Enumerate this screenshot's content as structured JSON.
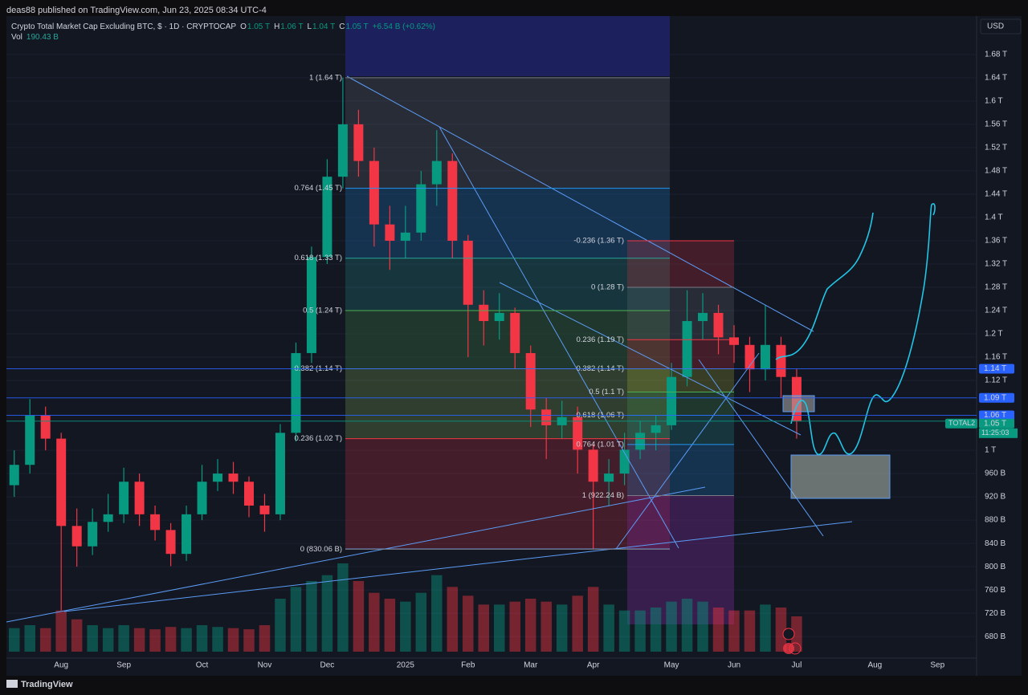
{
  "chart_data": {
    "type": "candlestick",
    "publisher": "deas88 published on TradingView.com, Jun 23, 2025 08:34 UTC-4",
    "title": "Crypto Total Market Cap Excluding BTC, $ · 1D · CRYPTOCAP",
    "ohlc_legend": [
      {
        "key": "O",
        "value": "1.05 T"
      },
      {
        "key": "H",
        "value": "1.06 T"
      },
      {
        "key": "L",
        "value": "1.04 T"
      },
      {
        "key": "C",
        "value": "1.05 T"
      }
    ],
    "change": "+6.54 B (+0.62%)",
    "volume_label": "Vol",
    "volume_value": "190.43 B",
    "currency": "USD",
    "brand": "TradingView",
    "up_color": "#089981",
    "down_color": "#f23645",
    "categories": [
      null,
      null,
      null,
      "Aug",
      null,
      null,
      null,
      "Sep",
      null,
      null,
      null,
      null,
      "Oct",
      null,
      null,
      null,
      "Nov",
      null,
      null,
      null,
      "Dec",
      null,
      null,
      null,
      null,
      "2025",
      null,
      null,
      null,
      "Feb",
      null,
      null,
      null,
      "Mar",
      null,
      null,
      null,
      "Apr",
      null,
      null,
      null,
      null,
      "May",
      null,
      null,
      null,
      "Jun",
      null,
      null,
      null,
      "Jul",
      null,
      null,
      null,
      null,
      "Aug",
      null,
      null,
      null,
      "Sep",
      null,
      null
    ],
    "open": [
      940,
      975,
      1060,
      1020,
      870,
      835,
      877,
      890,
      946,
      890,
      863,
      822,
      890,
      946,
      960,
      946,
      905,
      890,
      1030,
      1167,
      1332,
      1470,
      1560,
      1497,
      1388,
      1360,
      1374,
      1457,
      1497,
      1360,
      1250,
      1222,
      1236,
      1167,
      1070,
      1043,
      1057,
      1001,
      946,
      960,
      1001,
      1030,
      1043,
      1126,
      1222,
      1236,
      1194,
      1181,
      1139,
      1181,
      1126,
      null,
      null,
      null,
      null,
      null,
      null,
      null,
      null,
      null,
      null,
      null
    ],
    "high": [
      1000,
      1088,
      1075,
      1030,
      900,
      900,
      925,
      970,
      960,
      905,
      875,
      905,
      975,
      985,
      980,
      955,
      925,
      1045,
      1185,
      1350,
      1500,
      1640,
      1585,
      1520,
      1420,
      1420,
      1480,
      1550,
      1510,
      1370,
      1275,
      1270,
      1245,
      1180,
      1090,
      1085,
      1075,
      1010,
      985,
      1030,
      1050,
      1060,
      1150,
      1275,
      1270,
      1250,
      1215,
      1195,
      1250,
      1195,
      1140,
      null,
      null,
      null,
      null,
      null,
      null,
      null,
      null,
      null,
      null,
      null
    ],
    "low": [
      920,
      960,
      1000,
      725,
      800,
      820,
      860,
      875,
      870,
      845,
      801,
      810,
      880,
      930,
      925,
      885,
      860,
      880,
      1015,
      1150,
      1320,
      1450,
      1470,
      1350,
      1310,
      1330,
      1360,
      1420,
      1330,
      1160,
      1180,
      1190,
      1140,
      1040,
      985,
      1020,
      960,
      830,
      905,
      940,
      985,
      1000,
      1035,
      1110,
      1190,
      1165,
      1150,
      1100,
      1120,
      1090,
      1020,
      null,
      null,
      null,
      null,
      null,
      null,
      null,
      null,
      null,
      null,
      null
    ],
    "close": [
      975,
      1060,
      1020,
      870,
      835,
      877,
      890,
      946,
      890,
      863,
      822,
      890,
      946,
      960,
      946,
      905,
      890,
      1030,
      1167,
      1332,
      1470,
      1560,
      1497,
      1388,
      1360,
      1374,
      1457,
      1497,
      1360,
      1250,
      1222,
      1236,
      1167,
      1070,
      1043,
      1057,
      1001,
      946,
      960,
      1001,
      1030,
      1043,
      1126,
      1222,
      1236,
      1194,
      1181,
      1139,
      1181,
      1126,
      1050,
      null,
      null,
      null,
      null,
      null,
      null,
      null,
      null,
      null,
      null,
      null
    ],
    "volume": [
      400,
      450,
      400,
      700,
      550,
      450,
      400,
      450,
      400,
      380,
      420,
      400,
      450,
      420,
      400,
      380,
      450,
      900,
      1100,
      1200,
      1300,
      1500,
      1200,
      1000,
      900,
      850,
      1000,
      1300,
      1100,
      950,
      800,
      800,
      850,
      900,
      850,
      800,
      950,
      1100,
      800,
      700,
      700,
      750,
      850,
      900,
      850,
      750,
      700,
      700,
      800,
      750,
      600,
      null,
      null,
      null,
      null,
      null,
      null,
      null,
      null,
      null,
      null,
      null
    ],
    "ylim": [
      643,
      1746
    ],
    "grid": true,
    "yticks": [
      {
        "value": 1680,
        "label": "1.68 T"
      },
      {
        "value": 1640,
        "label": "1.64 T"
      },
      {
        "value": 1600,
        "label": "1.6 T"
      },
      {
        "value": 1560,
        "label": "1.56 T"
      },
      {
        "value": 1520,
        "label": "1.52 T"
      },
      {
        "value": 1480,
        "label": "1.48 T"
      },
      {
        "value": 1440,
        "label": "1.44 T"
      },
      {
        "value": 1400,
        "label": "1.4 T"
      },
      {
        "value": 1360,
        "label": "1.36 T"
      },
      {
        "value": 1320,
        "label": "1.32 T"
      },
      {
        "value": 1280,
        "label": "1.28 T"
      },
      {
        "value": 1240,
        "label": "1.24 T"
      },
      {
        "value": 1200,
        "label": "1.2 T"
      },
      {
        "value": 1160,
        "label": "1.16 T"
      },
      {
        "value": 1120,
        "label": "1.12 T"
      },
      {
        "value": 1000,
        "label": "1 T"
      },
      {
        "value": 960,
        "label": "960 B"
      },
      {
        "value": 920,
        "label": "920 B"
      },
      {
        "value": 880,
        "label": "880 B"
      },
      {
        "value": 840,
        "label": "840 B"
      },
      {
        "value": 800,
        "label": "800 B"
      },
      {
        "value": 760,
        "label": "760 B"
      },
      {
        "value": 720,
        "label": "720 B"
      },
      {
        "value": 680,
        "label": "680 B"
      }
    ],
    "fibs": [
      {
        "levels": [
          {
            "label": "1 (1.64 T)",
            "value": 1640,
            "color": "#787b86"
          },
          {
            "label": "0.764 (1.45 T)",
            "value": 1450,
            "color": "#2196f3"
          },
          {
            "label": "0.618 (1.33 T)",
            "value": 1330,
            "color": "#26a69a"
          },
          {
            "label": "0.5 (1.24 T)",
            "value": 1240,
            "color": "#4caf50"
          },
          {
            "label": "0.382 (1.14 T)",
            "value": 1140,
            "color": "#9ccc65"
          },
          {
            "label": "0.236 (1.02 T)",
            "value": 1020,
            "color": "#f23645"
          },
          {
            "label": "0 (830.06 B)",
            "value": 830.06,
            "color": "#787b86"
          }
        ]
      },
      {
        "levels": [
          {
            "label": "-0.236 (1.36 T)",
            "value": 1360,
            "color": "#f23645"
          },
          {
            "label": "0 (1.28 T)",
            "value": 1280,
            "color": "#787b86"
          },
          {
            "label": "0.236 (1.19 T)",
            "value": 1190,
            "color": "#f23645"
          },
          {
            "label": "0.382 (1.14 T)",
            "value": 1140,
            "color": "#c0ca33"
          },
          {
            "label": "0.5 (1.1 T)",
            "value": 1100,
            "color": "#4caf50"
          },
          {
            "label": "0.618 (1.06 T)",
            "value": 1060,
            "color": "#26a69a"
          },
          {
            "label": "0.764 (1.01 T)",
            "value": 1010,
            "color": "#2196f3"
          },
          {
            "label": "1 (922.24 B)",
            "value": 922.24,
            "color": "#787b86"
          }
        ]
      }
    ],
    "price_lines": [
      {
        "label": "1.14 T",
        "value": 1140,
        "color": "#2962ff"
      },
      {
        "label": "1.09 T",
        "value": 1090,
        "color": "#2962ff"
      },
      {
        "label": "1.06 T",
        "value": 1060,
        "color": "#2962ff"
      },
      {
        "label": "1.05 T",
        "value": 1050,
        "color": "#089981",
        "name": "TOTAL2",
        "countdown": "11:25:03"
      }
    ]
  }
}
